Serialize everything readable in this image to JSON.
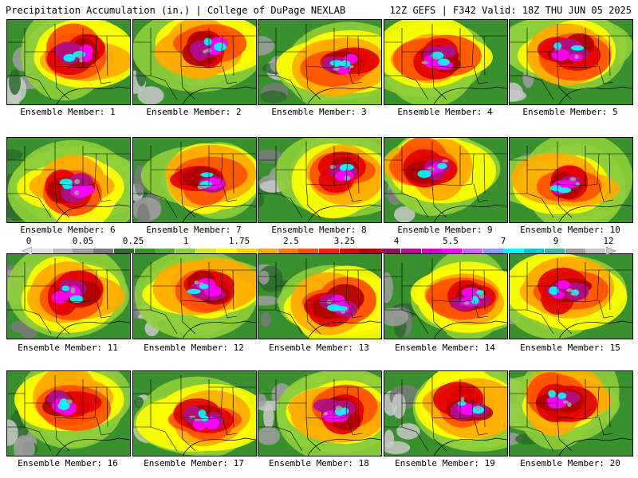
{
  "header": {
    "title_left": "Precipitation Accumulation (in.) | College of DuPage NEXLAB",
    "title_right": "12Z GEFS | F342 Valid: 18Z THU JUN 05 2025"
  },
  "colorbar": {
    "labels": [
      "0",
      "0.05",
      "0.25",
      "1",
      "1.75",
      "2.5",
      "3.25",
      "4",
      "5.5",
      "7",
      "9",
      "12"
    ],
    "colors": [
      "#e0e0e0",
      "#bdbdbd",
      "#9e9e9e",
      "#7a7a7a",
      "#2e6b2e",
      "#3a8f2e",
      "#5aa83a",
      "#8fcf3a",
      "#d6ea2a",
      "#ffff00",
      "#ffd400",
      "#ffaa00",
      "#ff8000",
      "#ff5000",
      "#ff2000",
      "#e00000",
      "#b00000",
      "#901050",
      "#b0108c",
      "#d800c8",
      "#ff00ff",
      "#cc66ff",
      "#8899ff",
      "#00ffff",
      "#00cccc",
      "#40b0b0",
      "#9e9e9e",
      "#c8c8c8"
    ]
  },
  "members": [
    {
      "caption": "Ensemble Member: 1"
    },
    {
      "caption": "Ensemble Member: 2"
    },
    {
      "caption": "Ensemble Member: 3"
    },
    {
      "caption": "Ensemble Member: 4"
    },
    {
      "caption": "Ensemble Member: 5"
    },
    {
      "caption": "Ensemble Member: 6"
    },
    {
      "caption": "Ensemble Member: 7"
    },
    {
      "caption": "Ensemble Member: 8"
    },
    {
      "caption": "Ensemble Member: 9"
    },
    {
      "caption": "Ensemble Member: 10"
    },
    {
      "caption": "Ensemble Member: 11"
    },
    {
      "caption": "Ensemble Member: 12"
    },
    {
      "caption": "Ensemble Member: 13"
    },
    {
      "caption": "Ensemble Member: 14"
    },
    {
      "caption": "Ensemble Member: 15"
    },
    {
      "caption": "Ensemble Member: 16"
    },
    {
      "caption": "Ensemble Member: 17"
    },
    {
      "caption": "Ensemble Member: 18"
    },
    {
      "caption": "Ensemble Member: 19"
    },
    {
      "caption": "Ensemble Member: 20"
    }
  ]
}
